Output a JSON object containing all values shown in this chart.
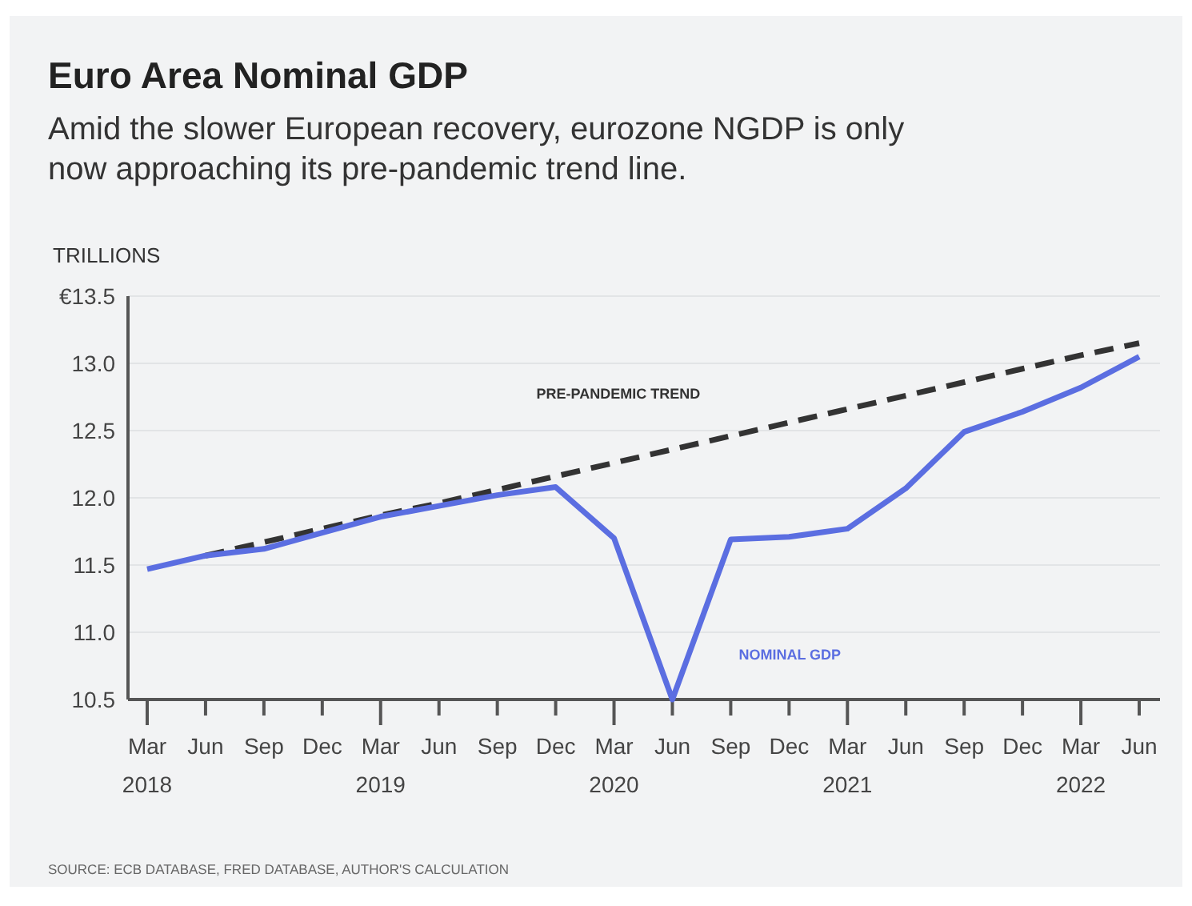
{
  "chart_data": {
    "type": "line",
    "title": "Euro Area Nominal GDP",
    "subtitle": "Amid the slower European recovery, eurozone NGDP is only now approaching its pre-pandemic trend line.",
    "ylabel": "TRILLIONS",
    "categories": [
      "Mar\n2018",
      "Jun",
      "Sep",
      "Dec",
      "Mar\n2019",
      "Jun",
      "Sep",
      "Dec",
      "Mar\n2020",
      "Jun",
      "Sep",
      "Dec",
      "Mar\n2021",
      "Jun",
      "Sep",
      "Dec",
      "Mar\n2022",
      "Jun"
    ],
    "series": [
      {
        "name": "PRE-PANDEMIC TREND",
        "color": "#333333",
        "line_style": "dashed",
        "values": [
          null,
          11.57,
          11.67,
          11.77,
          11.87,
          11.96,
          12.06,
          12.16,
          12.26,
          12.36,
          12.46,
          12.56,
          12.66,
          12.76,
          12.86,
          12.96,
          13.06,
          13.15
        ]
      },
      {
        "name": "NOMINAL GDP",
        "color": "#5b6ee1",
        "line_style": "solid",
        "values": [
          11.47,
          11.57,
          11.62,
          11.74,
          11.86,
          11.94,
          12.02,
          12.08,
          11.7,
          10.5,
          11.69,
          11.71,
          11.77,
          12.07,
          12.49,
          12.64,
          12.82,
          13.05
        ]
      }
    ],
    "ylim": [
      10.5,
      13.5
    ],
    "yticks": [
      10.5,
      {
        "value": 11,
        "label": "11.0"
      },
      11.5,
      {
        "value": 12,
        "label": "12.0"
      },
      12.5,
      {
        "value": 13,
        "label": "13.0"
      },
      {
        "value": 13.5,
        "label": "€13.5"
      }
    ],
    "grid": "y",
    "marker": "none",
    "annotations": [
      "SOURCE: ECB DATABASE, FRED DATABASE, AUTHOR'S CALCULATION"
    ]
  }
}
